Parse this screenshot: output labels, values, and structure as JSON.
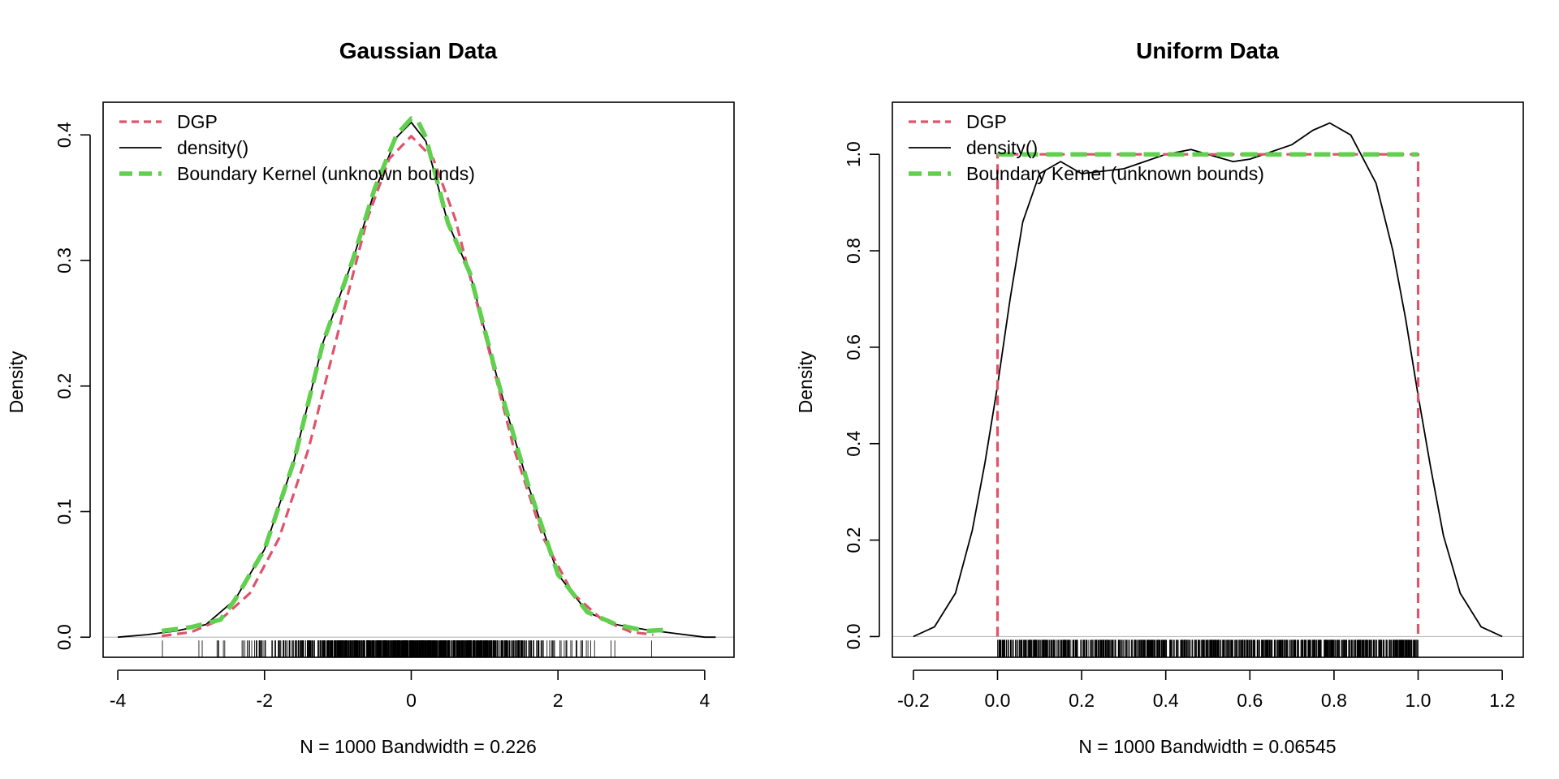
{
  "colors": {
    "dgp": "#DF536B",
    "density": "#000000",
    "boundary": "#61D04F",
    "baseline": "#BEBEBE"
  },
  "chart_data": [
    {
      "type": "line",
      "title": "Gaussian Data",
      "xlabel": "N = 1000   Bandwidth = 0.226",
      "ylabel": "Density",
      "xlim": [
        -4.2,
        4.4
      ],
      "ylim": [
        -0.016,
        0.426
      ],
      "xticks": [
        -4,
        -2,
        0,
        2,
        4
      ],
      "xtick_labels": [
        "-4",
        "-2",
        "0",
        "2",
        "4"
      ],
      "yticks": [
        0.0,
        0.1,
        0.2,
        0.3,
        0.4
      ],
      "ytick_labels": [
        "0.0",
        "0.1",
        "0.2",
        "0.3",
        "0.4"
      ],
      "legend_position": "top-left",
      "legend": [
        {
          "label": "DGP",
          "style": "dgp"
        },
        {
          "label": "density()",
          "style": "density"
        },
        {
          "label": "Boundary Kernel (unknown bounds)",
          "style": "boundary"
        }
      ],
      "series": [
        {
          "name": "DGP",
          "style": "dgp",
          "x": [
            -3.4,
            -3.0,
            -2.6,
            -2.2,
            -1.8,
            -1.4,
            -1.0,
            -0.6,
            -0.3,
            0.0,
            0.3,
            0.6,
            1.0,
            1.4,
            1.8,
            2.2,
            2.6,
            3.0,
            3.3
          ],
          "y": [
            0.001,
            0.004,
            0.014,
            0.035,
            0.079,
            0.15,
            0.242,
            0.333,
            0.381,
            0.399,
            0.381,
            0.333,
            0.242,
            0.15,
            0.079,
            0.035,
            0.014,
            0.004,
            0.002
          ]
        },
        {
          "name": "density()",
          "style": "density",
          "x": [
            -4.0,
            -3.6,
            -3.2,
            -2.8,
            -2.4,
            -2.0,
            -1.6,
            -1.2,
            -0.8,
            -0.5,
            -0.2,
            0.0,
            0.2,
            0.5,
            0.8,
            1.2,
            1.6,
            2.0,
            2.4,
            2.8,
            3.2,
            3.6,
            4.0,
            4.15
          ],
          "y": [
            0.0,
            0.002,
            0.005,
            0.01,
            0.03,
            0.07,
            0.14,
            0.235,
            0.3,
            0.355,
            0.398,
            0.41,
            0.395,
            0.33,
            0.29,
            0.2,
            0.12,
            0.05,
            0.02,
            0.01,
            0.006,
            0.003,
            0.0,
            0.0
          ]
        },
        {
          "name": "Boundary Kernel (unknown bounds)",
          "style": "boundary",
          "x": [
            -3.4,
            -3.0,
            -2.6,
            -2.4,
            -2.0,
            -1.6,
            -1.2,
            -0.8,
            -0.5,
            -0.2,
            0.0,
            0.1,
            0.2,
            0.5,
            0.8,
            1.2,
            1.6,
            2.0,
            2.4,
            2.8,
            3.2,
            3.5
          ],
          "y": [
            0.005,
            0.008,
            0.014,
            0.03,
            0.07,
            0.14,
            0.235,
            0.3,
            0.357,
            0.4,
            0.413,
            0.41,
            0.398,
            0.33,
            0.29,
            0.2,
            0.12,
            0.05,
            0.02,
            0.01,
            0.005,
            0.006
          ]
        }
      ]
    },
    {
      "type": "line",
      "title": "Uniform Data",
      "xlabel": "N = 1000   Bandwidth = 0.06545",
      "ylabel": "Density",
      "xlim": [
        -0.25,
        1.25
      ],
      "ylim": [
        -0.043,
        1.108
      ],
      "xticks": [
        -0.2,
        0.0,
        0.2,
        0.4,
        0.6,
        0.8,
        1.0,
        1.2
      ],
      "xtick_labels": [
        "-0.2",
        "0.0",
        "0.2",
        "0.4",
        "0.6",
        "0.8",
        "1.0",
        "1.2"
      ],
      "yticks": [
        0.0,
        0.2,
        0.4,
        0.6,
        0.8,
        1.0
      ],
      "ytick_labels": [
        "0.0",
        "0.2",
        "0.4",
        "0.6",
        "0.8",
        "1.0"
      ],
      "legend_position": "top-left",
      "legend": [
        {
          "label": "DGP",
          "style": "dgp"
        },
        {
          "label": "density()",
          "style": "density"
        },
        {
          "label": "Boundary Kernel (unknown bounds)",
          "style": "boundary"
        }
      ],
      "series": [
        {
          "name": "DGP",
          "style": "dgp",
          "x": [
            0.0,
            0.0,
            1.0,
            1.0
          ],
          "y": [
            0.0,
            1.0,
            1.0,
            0.0
          ]
        },
        {
          "name": "density()",
          "style": "density",
          "x": [
            -0.2,
            -0.15,
            -0.1,
            -0.06,
            -0.03,
            0.0,
            0.03,
            0.06,
            0.1,
            0.15,
            0.2,
            0.3,
            0.4,
            0.46,
            0.5,
            0.56,
            0.6,
            0.7,
            0.75,
            0.79,
            0.84,
            0.9,
            0.94,
            0.97,
            1.0,
            1.03,
            1.06,
            1.1,
            1.15,
            1.2
          ],
          "y": [
            0.0,
            0.02,
            0.09,
            0.22,
            0.36,
            0.52,
            0.7,
            0.86,
            0.96,
            0.985,
            0.96,
            0.97,
            1.0,
            1.01,
            1.0,
            0.985,
            0.99,
            1.02,
            1.05,
            1.065,
            1.04,
            0.94,
            0.8,
            0.66,
            0.5,
            0.35,
            0.21,
            0.09,
            0.02,
            0.0
          ]
        },
        {
          "name": "Boundary Kernel (unknown bounds)",
          "style": "boundary",
          "x": [
            0.0,
            1.0
          ],
          "y": [
            1.0,
            1.0
          ]
        }
      ]
    }
  ]
}
